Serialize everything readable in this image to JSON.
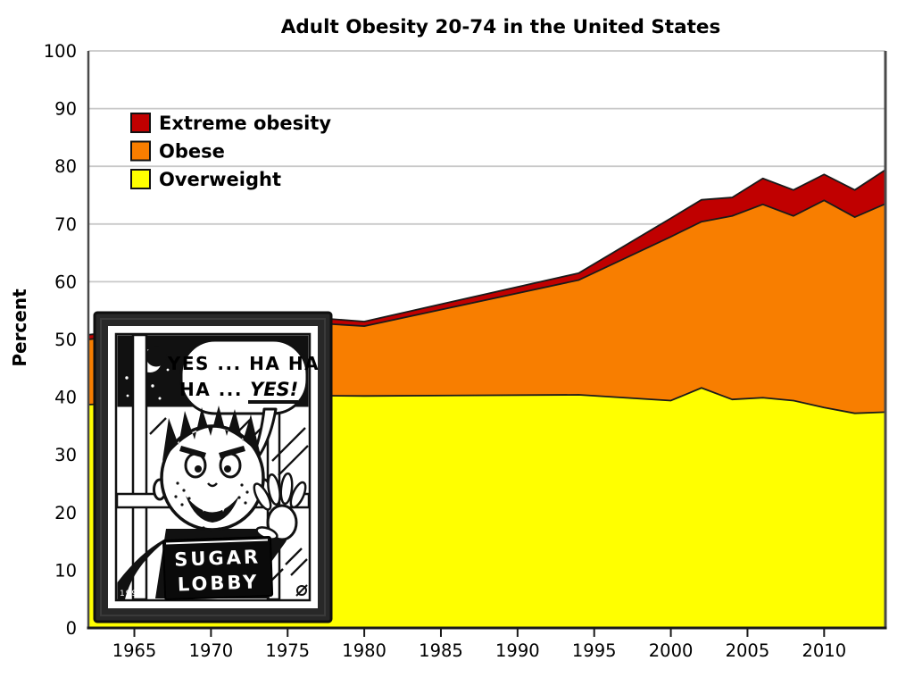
{
  "chart_data": {
    "type": "area",
    "stacked": true,
    "title": "Adult Obesity 20-74 in the United States",
    "xlabel": "",
    "ylabel": "Percent",
    "xlim": [
      1962,
      2014
    ],
    "ylim": [
      0,
      100
    ],
    "x_ticks": [
      1965,
      1970,
      1975,
      1980,
      1985,
      1990,
      1995,
      2000,
      2005,
      2010
    ],
    "y_ticks": [
      0,
      10,
      20,
      30,
      40,
      50,
      60,
      70,
      80,
      90,
      100
    ],
    "grid": "horizontal gridlines every 10, light gray",
    "legend_position": "upper-left inside plot",
    "x": [
      1962,
      1974,
      1980,
      1994,
      2000,
      2002,
      2004,
      2006,
      2008,
      2010,
      2012,
      2014
    ],
    "series": [
      {
        "name": "Overweight",
        "color": "#FFFF00",
        "values": [
          38.7,
          40.3,
          40.2,
          40.4,
          39.4,
          41.6,
          39.6,
          39.9,
          39.4,
          38.2,
          37.2,
          37.4
        ]
      },
      {
        "name": "Obese",
        "color": "#F87E00",
        "values": [
          11.3,
          13.0,
          12.1,
          19.9,
          28.4,
          28.8,
          31.8,
          33.5,
          32.0,
          35.9,
          34.0,
          36.1
        ]
      },
      {
        "name": "Extreme obesity",
        "color": "#C00000",
        "values": [
          0.8,
          1.0,
          0.8,
          1.2,
          3.2,
          3.8,
          3.2,
          4.5,
          4.5,
          4.5,
          4.7,
          5.9
        ]
      }
    ],
    "legend": [
      {
        "label": "Extreme obesity",
        "color": "#C00000"
      },
      {
        "label": "Obese",
        "color": "#F87E00"
      },
      {
        "label": "Overweight",
        "color": "#FFFF00"
      }
    ]
  },
  "cartoon": {
    "bubble_line1": "YES ... HA HA",
    "bubble_line2_prefix": "HA ...",
    "bubble_line2_emphasis": "YES!",
    "book_line1": "SUGAR",
    "book_line2": "LOBBY",
    "signature": "1998"
  },
  "colors": {
    "grid": "#C8C8C8",
    "axis": "#1A1A1A",
    "spine": "#4A4A4A",
    "boundary_outline": "#1A1A1A",
    "frame": "#282828"
  }
}
